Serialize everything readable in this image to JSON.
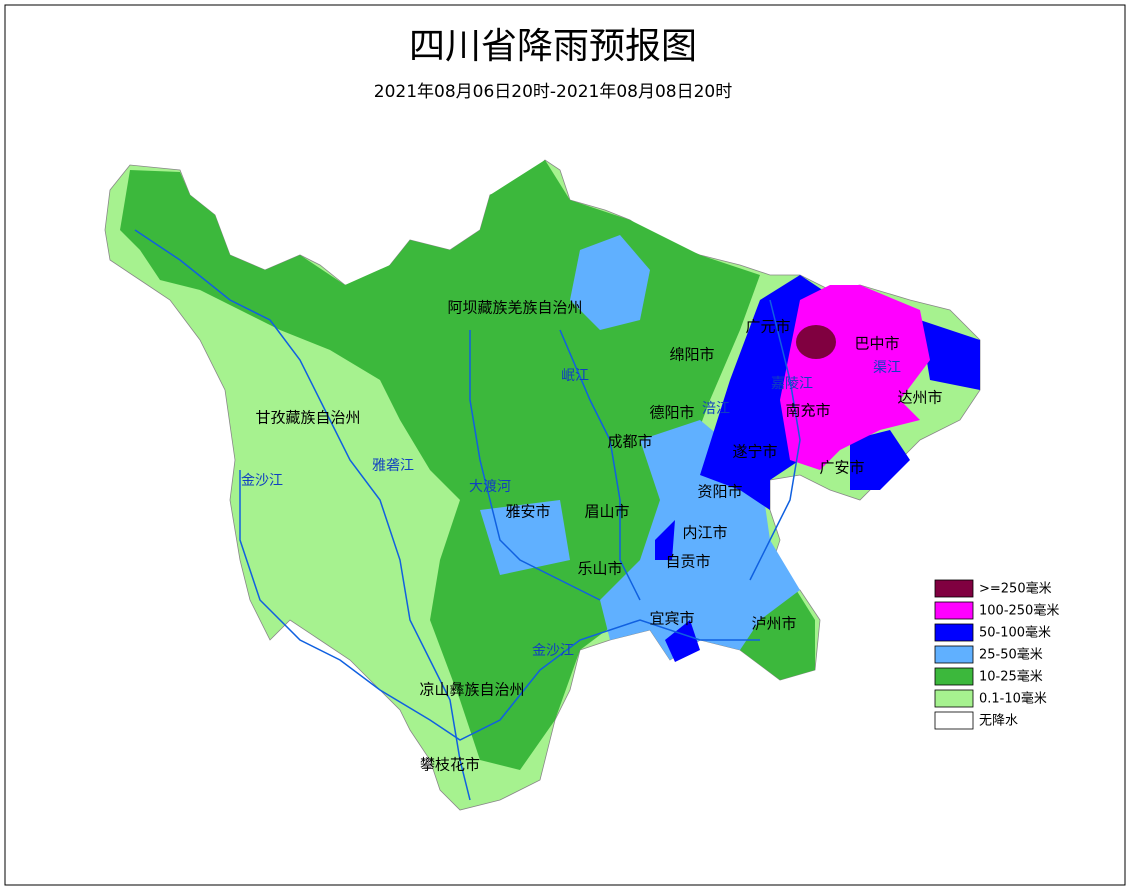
{
  "title": "四川省降雨预报图",
  "subtitle": "2021年08月06日20时-2021年08月08日20时",
  "regions": [
    "阿坝藏族羌族自治州",
    "甘孜藏族自治州",
    "凉山彝族自治州",
    "攀枝花市",
    "绵阳市",
    "广元市",
    "巴中市",
    "达州市",
    "南充市",
    "德阳市",
    "成都市",
    "遂宁市",
    "广安市",
    "资阳市",
    "雅安市",
    "眉山市",
    "内江市",
    "自贡市",
    "乐山市",
    "宜宾市",
    "泸州市"
  ],
  "rivers": [
    "岷江",
    "嘉陵江",
    "渠江",
    "涪江",
    "雅砻江",
    "大渡河",
    "金沙江",
    "金沙江"
  ],
  "legend": [
    {
      "label": ">=250毫米",
      "color": "#800040"
    },
    {
      "label": "100-250毫米",
      "color": "#ff00ff"
    },
    {
      "label": "50-100毫米",
      "color": "#0000ff"
    },
    {
      "label": "25-50毫米",
      "color": "#60b0ff"
    },
    {
      "label": "10-25毫米",
      "color": "#3cb83c"
    },
    {
      "label": "0.1-10毫米",
      "color": "#a6f28f"
    },
    {
      "label": "无降水",
      "color": "#ffffff"
    }
  ]
}
